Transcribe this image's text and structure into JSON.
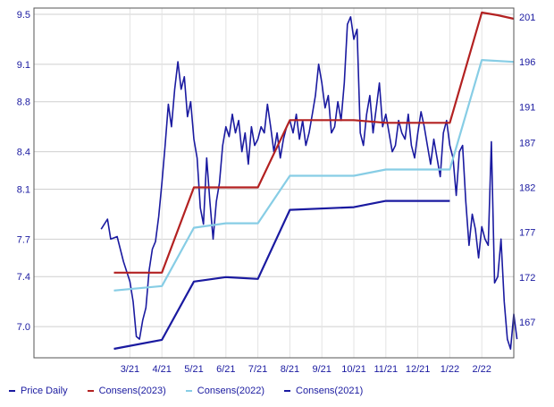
{
  "chart_data": {
    "type": "line",
    "title": "",
    "xlabel": "",
    "ylabel": "",
    "x_tick_labels": [
      "3/21",
      "4/21",
      "5/21",
      "6/21",
      "7/21",
      "8/21",
      "9/21",
      "10/21",
      "11/21",
      "12/21",
      "1/22",
      "2/22"
    ],
    "ylim_left": [
      6.75,
      9.55
    ],
    "left_ticks": [
      7.0,
      7.4,
      7.7,
      8.1,
      8.4,
      8.8,
      9.1,
      9.5
    ],
    "left_tick_labels": [
      "7.0",
      "7.4",
      "7.7",
      "8.1",
      "8.4",
      "8.8",
      "9.1",
      "9.5"
    ],
    "ylim_right": [
      163,
      202
    ],
    "right_ticks": [
      167,
      172,
      177,
      182,
      187,
      191,
      196,
      201
    ],
    "right_tick_labels": [
      "167",
      "172",
      "177",
      "182",
      "187",
      "191",
      "196",
      "201"
    ],
    "grid": true,
    "legend_position": "bottom",
    "series": [
      {
        "name": "Price Daily",
        "axis": "left",
        "color": "#1a1aa0",
        "points": [
          [
            2.1,
            7.78
          ],
          [
            2.3,
            7.86
          ],
          [
            2.4,
            7.7
          ],
          [
            2.6,
            7.72
          ],
          [
            2.8,
            7.52
          ],
          [
            3.0,
            7.36
          ],
          [
            3.1,
            7.2
          ],
          [
            3.2,
            6.92
          ],
          [
            3.3,
            6.9
          ],
          [
            3.4,
            7.05
          ],
          [
            3.5,
            7.15
          ],
          [
            3.6,
            7.45
          ],
          [
            3.7,
            7.62
          ],
          [
            3.8,
            7.68
          ],
          [
            3.9,
            7.88
          ],
          [
            4.0,
            8.15
          ],
          [
            4.1,
            8.45
          ],
          [
            4.2,
            8.78
          ],
          [
            4.3,
            8.6
          ],
          [
            4.4,
            8.9
          ],
          [
            4.5,
            9.12
          ],
          [
            4.6,
            8.9
          ],
          [
            4.7,
            9.0
          ],
          [
            4.8,
            8.68
          ],
          [
            4.9,
            8.8
          ],
          [
            5.0,
            8.5
          ],
          [
            5.1,
            8.35
          ],
          [
            5.2,
            7.95
          ],
          [
            5.3,
            7.82
          ],
          [
            5.4,
            8.35
          ],
          [
            5.5,
            8.0
          ],
          [
            5.6,
            7.7
          ],
          [
            5.7,
            8.0
          ],
          [
            5.8,
            8.15
          ],
          [
            5.9,
            8.45
          ],
          [
            6.0,
            8.6
          ],
          [
            6.1,
            8.52
          ],
          [
            6.2,
            8.7
          ],
          [
            6.3,
            8.55
          ],
          [
            6.4,
            8.65
          ],
          [
            6.5,
            8.4
          ],
          [
            6.6,
            8.55
          ],
          [
            6.7,
            8.3
          ],
          [
            6.8,
            8.6
          ],
          [
            6.9,
            8.45
          ],
          [
            7.0,
            8.5
          ],
          [
            7.1,
            8.6
          ],
          [
            7.2,
            8.55
          ],
          [
            7.3,
            8.78
          ],
          [
            7.4,
            8.6
          ],
          [
            7.5,
            8.4
          ],
          [
            7.6,
            8.55
          ],
          [
            7.7,
            8.35
          ],
          [
            7.8,
            8.5
          ],
          [
            7.9,
            8.6
          ],
          [
            8.0,
            8.65
          ],
          [
            8.1,
            8.55
          ],
          [
            8.2,
            8.7
          ],
          [
            8.3,
            8.5
          ],
          [
            8.4,
            8.65
          ],
          [
            8.5,
            8.45
          ],
          [
            8.6,
            8.55
          ],
          [
            8.7,
            8.7
          ],
          [
            8.8,
            8.85
          ],
          [
            8.9,
            9.1
          ],
          [
            9.0,
            8.95
          ],
          [
            9.1,
            8.75
          ],
          [
            9.2,
            8.85
          ],
          [
            9.3,
            8.55
          ],
          [
            9.4,
            8.6
          ],
          [
            9.5,
            8.8
          ],
          [
            9.6,
            8.65
          ],
          [
            9.7,
            8.95
          ],
          [
            9.8,
            9.42
          ],
          [
            9.9,
            9.48
          ],
          [
            10.0,
            9.3
          ],
          [
            10.1,
            9.38
          ],
          [
            10.2,
            8.55
          ],
          [
            10.3,
            8.45
          ],
          [
            10.4,
            8.7
          ],
          [
            10.5,
            8.85
          ],
          [
            10.6,
            8.55
          ],
          [
            10.7,
            8.75
          ],
          [
            10.8,
            8.95
          ],
          [
            10.9,
            8.6
          ],
          [
            11.0,
            8.7
          ],
          [
            11.1,
            8.55
          ],
          [
            11.2,
            8.4
          ],
          [
            11.3,
            8.45
          ],
          [
            11.4,
            8.65
          ],
          [
            11.5,
            8.55
          ],
          [
            11.6,
            8.5
          ],
          [
            11.7,
            8.7
          ],
          [
            11.8,
            8.45
          ],
          [
            11.9,
            8.35
          ],
          [
            12.0,
            8.55
          ],
          [
            12.1,
            8.72
          ],
          [
            12.2,
            8.6
          ],
          [
            12.3,
            8.45
          ],
          [
            12.4,
            8.3
          ],
          [
            12.5,
            8.5
          ],
          [
            12.6,
            8.35
          ],
          [
            12.7,
            8.2
          ],
          [
            12.8,
            8.55
          ],
          [
            12.9,
            8.65
          ],
          [
            13.0,
            8.45
          ],
          [
            13.1,
            8.35
          ],
          [
            13.2,
            8.05
          ],
          [
            13.3,
            8.4
          ],
          [
            13.4,
            8.45
          ],
          [
            13.5,
            8.0
          ],
          [
            13.6,
            7.65
          ],
          [
            13.7,
            7.9
          ],
          [
            13.8,
            7.78
          ],
          [
            13.9,
            7.55
          ],
          [
            14.0,
            7.8
          ],
          [
            14.1,
            7.7
          ],
          [
            14.2,
            7.65
          ],
          [
            14.3,
            8.48
          ],
          [
            14.4,
            7.35
          ],
          [
            14.5,
            7.4
          ],
          [
            14.6,
            7.7
          ],
          [
            14.7,
            7.2
          ],
          [
            14.8,
            6.9
          ],
          [
            14.9,
            6.82
          ],
          [
            15.0,
            7.1
          ],
          [
            15.1,
            6.9
          ]
        ]
      },
      {
        "name": "Consens(2023)",
        "axis": "right",
        "color": "#b32121",
        "points": [
          [
            2.5,
            172.5
          ],
          [
            4.0,
            172.5
          ],
          [
            5.0,
            182.0
          ],
          [
            7.0,
            182.0
          ],
          [
            8.0,
            189.5
          ],
          [
            10.0,
            189.5
          ],
          [
            11.0,
            189.2
          ],
          [
            13.0,
            189.2
          ],
          [
            14.0,
            201.5
          ],
          [
            14.5,
            201.2
          ],
          [
            15.0,
            200.8
          ]
        ]
      },
      {
        "name": "Consens(2022)",
        "axis": "right",
        "color": "#87cde5",
        "points": [
          [
            2.5,
            170.5
          ],
          [
            4.0,
            171.0
          ],
          [
            5.0,
            177.5
          ],
          [
            6.0,
            178.0
          ],
          [
            7.0,
            178.0
          ],
          [
            8.0,
            183.3
          ],
          [
            10.0,
            183.3
          ],
          [
            11.0,
            184.0
          ],
          [
            13.0,
            184.0
          ],
          [
            14.0,
            196.2
          ],
          [
            15.0,
            196.0
          ]
        ]
      },
      {
        "name": "Consens(2021)",
        "axis": "right",
        "color": "#1a1aa0",
        "points": [
          [
            2.5,
            164.0
          ],
          [
            4.0,
            165.0
          ],
          [
            5.0,
            171.5
          ],
          [
            6.0,
            172.0
          ],
          [
            7.0,
            171.8
          ],
          [
            8.0,
            179.5
          ],
          [
            10.0,
            179.8
          ],
          [
            11.0,
            180.5
          ],
          [
            13.0,
            180.5
          ]
        ]
      }
    ]
  }
}
